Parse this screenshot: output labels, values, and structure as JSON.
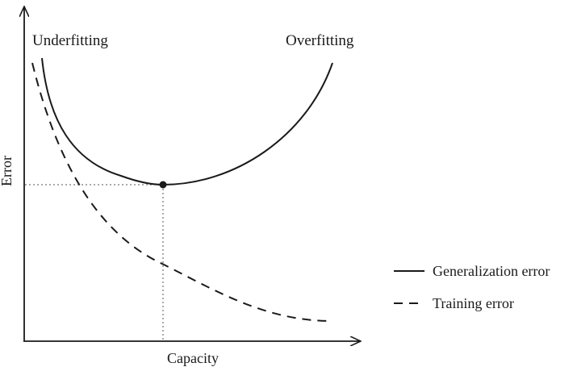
{
  "diagram": {
    "x_axis_label": "Capacity",
    "y_axis_label": "Error",
    "region_left_label": "Underfitting",
    "region_right_label": "Overfitting"
  },
  "legend": {
    "items": [
      {
        "label": "Generalization error",
        "line_style": "solid"
      },
      {
        "label": "Training error",
        "line_style": "dashed"
      }
    ]
  },
  "curves": [
    {
      "name": "generalization-error",
      "line_style": "solid",
      "shape": "u-shaped, minimum at optimal capacity"
    },
    {
      "name": "training-error",
      "line_style": "dashed",
      "shape": "monotonically decreasing"
    }
  ],
  "markers": [
    {
      "name": "optimal-capacity-point",
      "description": "minimum of generalization error, marked with dotted guide lines to both axes"
    }
  ],
  "colors": {
    "ink": "#1a1a1a",
    "guide": "#555555",
    "background": "#ffffff"
  }
}
